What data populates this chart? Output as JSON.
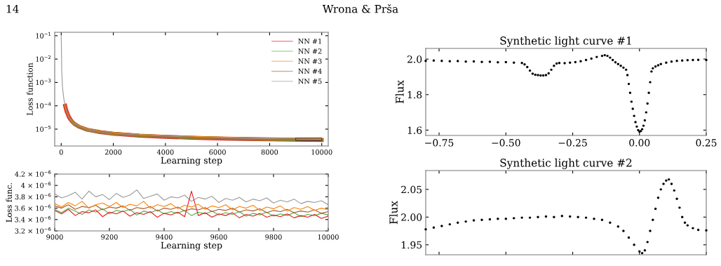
{
  "chart_data": [
    {
      "type": "line",
      "xlabel": "Learning step",
      "ylabel": "Loss function",
      "log": "y",
      "legend": "top right",
      "annotations": [
        "14",
        "Wrona & Prša"
      ],
      "xlim": [
        -250,
        10250
      ],
      "xticks": [
        0,
        2000,
        4000,
        6000,
        8000,
        10000
      ],
      "ylim": [
        1.9e-06,
        0.14
      ],
      "yticks": [
        {
          "value": 1e-05,
          "label": "10$^{−5}$"
        },
        {
          "value": 0.0001,
          "label": "10$^{−4}$"
        },
        {
          "value": 0.001,
          "label": "10$^{−3}$"
        },
        {
          "value": 0.01,
          "label": "10$^{−2}$"
        },
        {
          "value": 0.1,
          "label": "10$^{−1}$"
        }
      ],
      "x": [
        0,
        20,
        50,
        100,
        150,
        200,
        300,
        400,
        500,
        700,
        1000,
        1500,
        2000,
        3000,
        4000,
        5000,
        6000,
        7000,
        8000,
        9000,
        10000
      ],
      "series": [
        {
          "name": "NN #1",
          "color": "#e41a1c",
          "values": [
            null,
            null,
            null,
            null,
            0.0001,
            6e-05,
            3.2e-05,
            2.2e-05,
            1.7e-05,
            1.25e-05,
            9.4e-06,
            7.4e-06,
            6.4e-06,
            5.3e-06,
            4.7e-06,
            4.3e-06,
            4e-06,
            3.8e-06,
            3.65e-06,
            3.55e-06,
            3.45e-06
          ]
        },
        {
          "name": "NN #2",
          "color": "#4daf4a",
          "values": [
            null,
            null,
            null,
            null,
            null,
            null,
            null,
            2.2e-05,
            1.7e-05,
            1.25e-05,
            9.5e-06,
            7.5e-06,
            6.5e-06,
            5.4e-06,
            4.8e-06,
            4.4e-06,
            4.1e-06,
            3.9e-06,
            3.7e-06,
            3.6e-06,
            3.5e-06
          ]
        },
        {
          "name": "NN #3",
          "color": "#ff7f00",
          "values": [
            null,
            null,
            null,
            null,
            0.0001,
            6e-05,
            3.2e-05,
            2.2e-05,
            1.7e-05,
            1.3e-05,
            9.6e-06,
            7.6e-06,
            6.6e-06,
            5.5e-06,
            4.9e-06,
            4.5e-06,
            4.2e-06,
            3.95e-06,
            3.8e-06,
            3.7e-06,
            3.6e-06
          ]
        },
        {
          "name": "NN #4",
          "color": "#a65628",
          "values": [
            null,
            null,
            null,
            null,
            0.0001,
            6e-05,
            3.2e-05,
            2.2e-05,
            1.7e-05,
            1.25e-05,
            9.5e-06,
            7.5e-06,
            6.5e-06,
            5.4e-06,
            4.8e-06,
            4.4e-06,
            4.1e-06,
            3.9e-06,
            3.75e-06,
            3.65e-06,
            3.55e-06
          ]
        },
        {
          "name": "NN #5",
          "color": "#999999",
          "values": [
            0.1,
            0.003,
            0.0006,
            0.0002,
            0.0001,
            6e-05,
            3.2e-05,
            2.2e-05,
            1.7e-05,
            1.3e-05,
            9.6e-06,
            7.6e-06,
            6.6e-06,
            5.6e-06,
            5e-06,
            4.6e-06,
            4.3e-06,
            4.1e-06,
            3.9e-06,
            3.8e-06,
            3.7e-06
          ]
        }
      ]
    },
    {
      "type": "line",
      "xlabel": "Learning step",
      "ylabel": "Loss func.",
      "xlim": [
        9000,
        10000
      ],
      "xticks": [
        9000,
        9200,
        9400,
        9600,
        9800,
        10000
      ],
      "ylim": [
        3.2e-06,
        4.2e-06
      ],
      "yticks": [
        {
          "value": 3.2e-06,
          "label": "3.2 × 10$^{−6}$"
        },
        {
          "value": 3.4e-06,
          "label": "3.4 × 10$^{−6}$"
        },
        {
          "value": 3.6e-06,
          "label": "3.6 × 10$^{−6}$"
        },
        {
          "value": 3.8e-06,
          "label": "3.8 × 10$^{−6}$"
        },
        {
          "value": 4e-06,
          "label": "4 × 10$^{−6}$"
        },
        {
          "value": 4.2e-06,
          "label": "4.2 × 10$^{−6}$"
        }
      ],
      "x": [
        9000,
        9025,
        9050,
        9075,
        9100,
        9125,
        9150,
        9175,
        9200,
        9225,
        9250,
        9275,
        9300,
        9325,
        9350,
        9375,
        9400,
        9425,
        9450,
        9475,
        9500,
        9525,
        9550,
        9575,
        9600,
        9625,
        9650,
        9675,
        9700,
        9725,
        9750,
        9775,
        9800,
        9825,
        9850,
        9875,
        9900,
        9925,
        9950,
        9975,
        10000
      ],
      "series": [
        {
          "color": "#999999",
          "values": [
            3.85e-06,
            3.78e-06,
            3.82e-06,
            3.88e-06,
            3.76e-06,
            3.9e-06,
            3.8e-06,
            3.84e-06,
            3.75e-06,
            3.86e-06,
            3.79e-06,
            3.83e-06,
            3.92e-06,
            3.77e-06,
            3.81e-06,
            3.85e-06,
            3.74e-06,
            3.8e-06,
            3.78e-06,
            3.83e-06,
            3.72e-06,
            3.79e-06,
            3.76e-06,
            3.81e-06,
            3.7e-06,
            3.77e-06,
            3.74e-06,
            3.79e-06,
            3.71e-06,
            3.76e-06,
            3.73e-06,
            3.78e-06,
            3.69e-06,
            3.74e-06,
            3.71e-06,
            3.76e-06,
            3.68e-06,
            3.72e-06,
            3.7e-06,
            3.73e-06,
            3.66e-06
          ]
        },
        {
          "color": "#4daf4a",
          "values": [
            3.58e-06,
            3.52e-06,
            3.6e-06,
            3.55e-06,
            3.49e-06,
            3.57e-06,
            3.53e-06,
            3.59e-06,
            3.5e-06,
            3.56e-06,
            3.54e-06,
            3.58e-06,
            3.48e-06,
            3.55e-06,
            3.52e-06,
            3.57e-06,
            3.5e-06,
            3.54e-06,
            3.51e-06,
            3.56e-06,
            3.47e-06,
            3.53e-06,
            3.5e-06,
            3.55e-06,
            3.48e-06,
            3.52e-06,
            3.49e-06,
            3.54e-06,
            3.46e-06,
            3.51e-06,
            3.48e-06,
            3.53e-06,
            3.46e-06,
            3.5e-06,
            3.47e-06,
            3.52e-06,
            3.45e-06,
            3.49e-06,
            3.47e-06,
            3.51e-06,
            3.48e-06
          ]
        },
        {
          "color": "#e41a1c",
          "values": [
            3.56e-06,
            3.5e-06,
            3.58e-06,
            3.47e-06,
            3.54e-06,
            3.52e-06,
            3.57e-06,
            3.45e-06,
            3.53e-06,
            3.5e-06,
            3.55e-06,
            3.46e-06,
            3.52e-06,
            3.49e-06,
            3.54e-06,
            3.44e-06,
            3.51e-06,
            3.48e-06,
            3.53e-06,
            3.45e-06,
            3.9e-06,
            3.47e-06,
            3.52e-06,
            3.44e-06,
            3.5e-06,
            3.47e-06,
            3.52e-06,
            3.43e-06,
            3.49e-06,
            3.46e-06,
            3.51e-06,
            3.44e-06,
            3.48e-06,
            3.45e-06,
            3.5e-06,
            3.43e-06,
            3.47e-06,
            3.44e-06,
            3.49e-06,
            3.42e-06,
            3.46e-06
          ]
        },
        {
          "color": "#a65628",
          "values": [
            3.64e-06,
            3.6e-06,
            3.66e-06,
            3.58e-06,
            3.63e-06,
            3.61e-06,
            3.65e-06,
            3.57e-06,
            3.62e-06,
            3.6e-06,
            3.64e-06,
            3.56e-06,
            3.61e-06,
            3.59e-06,
            3.63e-06,
            3.55e-06,
            3.6e-06,
            3.58e-06,
            3.62e-06,
            3.55e-06,
            3.59e-06,
            3.57e-06,
            3.61e-06,
            3.54e-06,
            3.58e-06,
            3.56e-06,
            3.6e-06,
            3.53e-06,
            3.57e-06,
            3.55e-06,
            3.59e-06,
            3.52e-06,
            3.56e-06,
            3.54e-06,
            3.58e-06,
            3.52e-06,
            3.55e-06,
            3.53e-06,
            3.57e-06,
            3.51e-06,
            3.54e-06
          ]
        },
        {
          "color": "#ff7f00",
          "values": [
            3.68e-06,
            3.62e-06,
            3.7e-06,
            3.64e-06,
            3.72e-06,
            3.6e-06,
            3.66e-06,
            3.69e-06,
            3.63e-06,
            3.7e-06,
            3.61e-06,
            3.67e-06,
            3.64e-06,
            3.72e-06,
            3.6e-06,
            3.66e-06,
            3.63e-06,
            3.68e-06,
            3.59e-06,
            3.65e-06,
            3.62e-06,
            3.67e-06,
            3.58e-06,
            3.64e-06,
            3.61e-06,
            3.66e-06,
            3.57e-06,
            3.63e-06,
            3.6e-06,
            3.65e-06,
            3.56e-06,
            3.62e-06,
            3.59e-06,
            3.64e-06,
            3.55e-06,
            3.61e-06,
            3.58e-06,
            3.63e-06,
            3.56e-06,
            3.6e-06,
            3.57e-06
          ]
        }
      ]
    },
    {
      "type": "scatter",
      "title": "Synthetic light curve #1",
      "ylabel": "Flux",
      "xlim": [
        -0.8,
        0.25
      ],
      "xticks": [
        {
          "value": -0.75,
          "label": "−0.75"
        },
        {
          "value": -0.5,
          "label": "−0.50"
        },
        {
          "value": -0.25,
          "label": "−0.25"
        },
        {
          "value": 0,
          "label": "0.00"
        },
        {
          "value": 0.25,
          "label": "0.25"
        }
      ],
      "ylim": [
        1.57,
        2.06
      ],
      "yticks": [
        1.6,
        1.8,
        {
          "value": 2.0,
          "label": "2.0"
        }
      ],
      "x": [
        -0.8,
        -0.77,
        -0.74,
        -0.71,
        -0.68,
        -0.65,
        -0.62,
        -0.59,
        -0.56,
        -0.53,
        -0.5,
        -0.47,
        -0.44,
        -0.43,
        -0.42,
        -0.41,
        -0.4,
        -0.39,
        -0.38,
        -0.37,
        -0.36,
        -0.35,
        -0.34,
        -0.33,
        -0.32,
        -0.31,
        -0.3,
        -0.28,
        -0.26,
        -0.24,
        -0.22,
        -0.2,
        -0.18,
        -0.16,
        -0.14,
        -0.13,
        -0.12,
        -0.11,
        -0.1,
        -0.09,
        -0.08,
        -0.07,
        -0.06,
        -0.05,
        -0.045,
        -0.04,
        -0.035,
        -0.03,
        -0.025,
        -0.02,
        -0.015,
        -0.01,
        -0.005,
        0.0,
        0.005,
        0.01,
        0.015,
        0.02,
        0.025,
        0.03,
        0.035,
        0.04,
        0.045,
        0.05,
        0.06,
        0.07,
        0.08,
        0.1,
        0.12,
        0.14,
        0.16,
        0.18,
        0.2,
        0.22,
        0.25
      ],
      "series": [
        {
          "color": "#000000",
          "values": [
            1.99,
            1.992,
            1.99,
            1.988,
            1.989,
            1.986,
            1.987,
            1.984,
            1.985,
            1.982,
            1.983,
            1.98,
            1.978,
            1.97,
            1.955,
            1.935,
            1.918,
            1.912,
            1.91,
            1.908,
            1.908,
            1.91,
            1.92,
            1.94,
            1.962,
            1.975,
            1.978,
            1.977,
            1.98,
            1.983,
            1.988,
            1.995,
            2.003,
            2.012,
            2.018,
            2.022,
            2.018,
            2.008,
            1.995,
            1.982,
            1.972,
            1.962,
            1.952,
            1.94,
            1.91,
            1.86,
            1.81,
            1.76,
            1.72,
            1.68,
            1.645,
            1.62,
            1.6,
            1.592,
            1.595,
            1.605,
            1.625,
            1.655,
            1.7,
            1.75,
            1.81,
            1.87,
            1.93,
            1.948,
            1.958,
            1.965,
            1.972,
            1.98,
            1.986,
            1.99,
            1.992,
            1.994,
            1.995,
            1.996,
            1.995
          ]
        }
      ]
    },
    {
      "type": "scatter",
      "title": "Synthetic light curve #2",
      "ylabel": "Flux",
      "tick_labels": "y",
      "xlim": [
        -0.8,
        0.25
      ],
      "xticks": [
        {
          "value": -0.75,
          "label": null
        },
        {
          "value": -0.5,
          "label": null
        },
        {
          "value": -0.25,
          "label": null
        },
        {
          "value": 0,
          "label": null
        },
        {
          "value": 0.25,
          "label": null
        }
      ],
      "ylim": [
        1.932,
        2.084
      ],
      "yticks": [
        {
          "value": 1.95,
          "label": "1.95"
        },
        {
          "value": 2.0,
          "label": "2.00"
        },
        {
          "value": 2.05,
          "label": "2.05"
        }
      ],
      "x": [
        -0.8,
        -0.77,
        -0.74,
        -0.71,
        -0.68,
        -0.65,
        -0.62,
        -0.59,
        -0.56,
        -0.53,
        -0.5,
        -0.47,
        -0.44,
        -0.41,
        -0.38,
        -0.35,
        -0.32,
        -0.29,
        -0.26,
        -0.23,
        -0.2,
        -0.17,
        -0.14,
        -0.11,
        -0.08,
        -0.06,
        -0.04,
        -0.02,
        0.0,
        0.01,
        0.02,
        0.03,
        0.04,
        0.05,
        0.06,
        0.07,
        0.08,
        0.09,
        0.1,
        0.11,
        0.12,
        0.13,
        0.14,
        0.15,
        0.16,
        0.17,
        0.18,
        0.2,
        0.22,
        0.25
      ],
      "series": [
        {
          "color": "#000000",
          "values": [
            1.978,
            1.981,
            1.984,
            1.987,
            1.99,
            1.992,
            1.994,
            1.995,
            1.996,
            1.997,
            1.997,
            1.998,
            1.999,
            1.999,
            2.0,
            2.001,
            2.0,
            2.002,
            2.001,
            2.0,
            1.999,
            1.997,
            1.995,
            1.99,
            1.983,
            1.975,
            1.963,
            1.95,
            1.938,
            1.935,
            1.94,
            1.955,
            1.975,
            1.995,
            2.015,
            2.035,
            2.05,
            2.06,
            2.066,
            2.068,
            2.06,
            2.048,
            2.033,
            2.017,
            2.0,
            1.99,
            1.985,
            1.98,
            1.977,
            1.976
          ]
        }
      ]
    }
  ]
}
